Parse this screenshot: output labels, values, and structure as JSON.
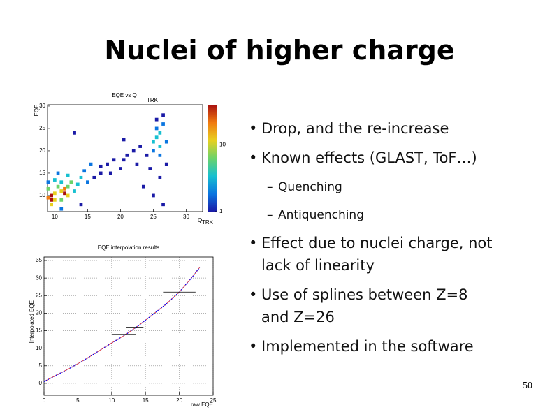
{
  "title": "Nuclei of higher charge",
  "bullets": [
    {
      "text": "Drop, and the re-increase"
    },
    {
      "text": "Known effects (GLAST, ToF…)",
      "sub": [
        "Quenching",
        "Antiquenching"
      ]
    },
    {
      "text": "Effect due to nuclei charge, not lack of linearity"
    },
    {
      "text": "Use of splines between Z=8 and Z=26"
    },
    {
      "text": "Implemented in the software"
    }
  ],
  "page_number": "50",
  "chart_data": [
    {
      "type": "heatmap",
      "title": "EQE vs Q",
      "title_subscript": "TRK",
      "xlabel": "Q",
      "xlabel_subscript": "TRK",
      "ylabel": "EQE",
      "xlim": [
        8.9,
        32.5
      ],
      "xticks": [
        10,
        15,
        20,
        25,
        30
      ],
      "ylim": [
        6.4,
        30.3
      ],
      "yticks": [
        10,
        15,
        20,
        25,
        30
      ],
      "zlim": [
        1,
        40
      ],
      "zticks": [
        1,
        10
      ],
      "zscale": "log",
      "colormap": [
        "#1a1aa6",
        "#0a75e0",
        "#17c0d0",
        "#6cd36a",
        "#e8d020",
        "#f07a10",
        "#a81010"
      ],
      "cells": {
        "x": [
          9.5,
          9.5,
          9,
          10,
          9.5,
          10,
          11.5,
          11.5,
          12,
          11,
          12,
          11,
          10.5,
          9,
          12.5,
          11,
          10,
          13,
          13.5,
          12,
          14,
          9,
          10.5,
          15,
          14.5,
          16,
          15.5,
          17,
          17,
          18,
          19,
          18.5,
          20,
          20.5,
          21,
          22,
          22.5,
          23,
          24,
          25,
          25.5,
          26,
          25.5,
          26,
          26.5,
          25,
          26,
          27,
          25.5,
          26.5,
          24.5,
          26,
          27,
          25,
          26.5,
          23.5,
          13,
          20.5,
          11,
          14
        ],
        "y": [
          9,
          10,
          9.5,
          9,
          8,
          10.5,
          10.5,
          11.5,
          10,
          11,
          12,
          9,
          12,
          11.5,
          13,
          13,
          13.5,
          11,
          12.5,
          14.5,
          14,
          13,
          15,
          13,
          15.5,
          14,
          17,
          15,
          16.5,
          17,
          18,
          15,
          16,
          18,
          19,
          20,
          17,
          21,
          19,
          22,
          23,
          24,
          25,
          21,
          26,
          20,
          19,
          22,
          27,
          28,
          16,
          14,
          17,
          10,
          8,
          12,
          24,
          22.5,
          7,
          8
        ],
        "values": [
          40,
          30,
          20,
          15,
          12,
          10,
          30,
          20,
          15,
          12,
          8,
          6,
          6,
          5,
          5,
          4,
          3,
          4,
          3,
          3,
          3,
          2,
          2,
          2,
          2,
          1,
          2,
          1,
          1,
          1,
          1,
          1,
          1,
          1,
          1,
          1,
          1,
          1,
          1,
          3,
          4,
          3,
          2,
          3,
          2,
          2,
          2,
          2,
          1,
          1,
          1,
          1,
          1,
          1,
          1,
          1,
          1,
          1,
          2,
          1
        ]
      }
    },
    {
      "type": "scatter",
      "title": "EQE interpolation results",
      "xlabel": "raw EQE",
      "ylabel": "Interpolated EQE",
      "xlim": [
        0,
        25
      ],
      "xticks": [
        0,
        5,
        10,
        15,
        20,
        25
      ],
      "ylim": [
        -3.4,
        36
      ],
      "yticks": [
        0,
        5,
        10,
        15,
        20,
        25,
        30,
        35
      ],
      "grid": true,
      "spline": {
        "color": "#0000ff",
        "line_color": "#e02020",
        "x": [
          0,
          2,
          4,
          6,
          8,
          10,
          12,
          14,
          16,
          18,
          20,
          22,
          23
        ],
        "y": [
          0.5,
          2.5,
          4.5,
          6.7,
          9.1,
          11.5,
          13.8,
          16.5,
          19.5,
          22.5,
          26,
          30.5,
          33
        ]
      },
      "points": {
        "color": "#000000",
        "x": [
          7.6,
          9.5,
          10.7,
          11.8,
          13.4,
          20
        ],
        "y": [
          8,
          10,
          12,
          14,
          16,
          26
        ],
        "xerr": [
          1,
          1,
          1,
          1.8,
          1.3,
          2.4
        ]
      }
    }
  ]
}
